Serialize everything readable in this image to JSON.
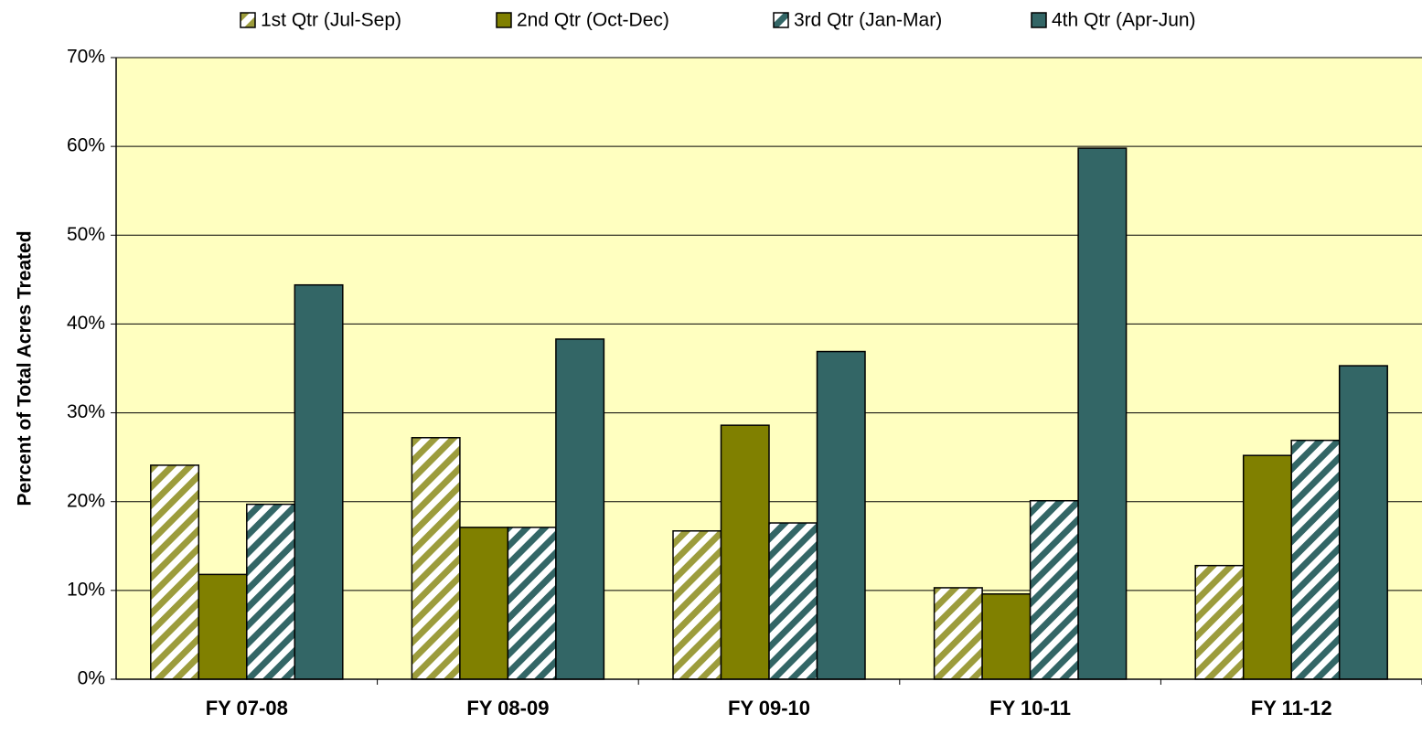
{
  "chart_data": {
    "type": "bar",
    "ylabel": "Percent of Total Acres Treated",
    "categories": [
      "FY 07-08",
      "FY 08-09",
      "FY 09-10",
      "FY 10-11",
      "FY 11-12"
    ],
    "series": [
      {
        "name": "1st Qtr (Jul-Sep)",
        "color": "#9c9c3c",
        "hatch": true,
        "values": [
          24.1,
          27.2,
          16.7,
          10.3,
          12.8
        ]
      },
      {
        "name": "2nd Qtr (Oct-Dec)",
        "color": "#808000",
        "hatch": false,
        "values": [
          11.8,
          17.1,
          28.6,
          9.6,
          25.2
        ]
      },
      {
        "name": "3rd Qtr (Jan-Mar)",
        "color": "#336666",
        "hatch": true,
        "values": [
          19.7,
          17.1,
          17.6,
          20.1,
          26.9
        ]
      },
      {
        "name": "4th Qtr (Apr-Jun)",
        "color": "#336666",
        "hatch": false,
        "values": [
          44.4,
          38.3,
          36.9,
          59.8,
          35.3
        ]
      }
    ],
    "ylim": [
      0,
      70
    ],
    "yticks": [
      {
        "value": 0,
        "label": "0%"
      },
      {
        "value": 10,
        "label": "10%"
      },
      {
        "value": 20,
        "label": "20%"
      },
      {
        "value": 30,
        "label": "30%"
      },
      {
        "value": 40,
        "label": "40%"
      },
      {
        "value": 50,
        "label": "50%"
      },
      {
        "value": 60,
        "label": "60%"
      },
      {
        "value": 70,
        "label": "70%"
      }
    ],
    "grid": true,
    "background": "#ffffc0"
  }
}
